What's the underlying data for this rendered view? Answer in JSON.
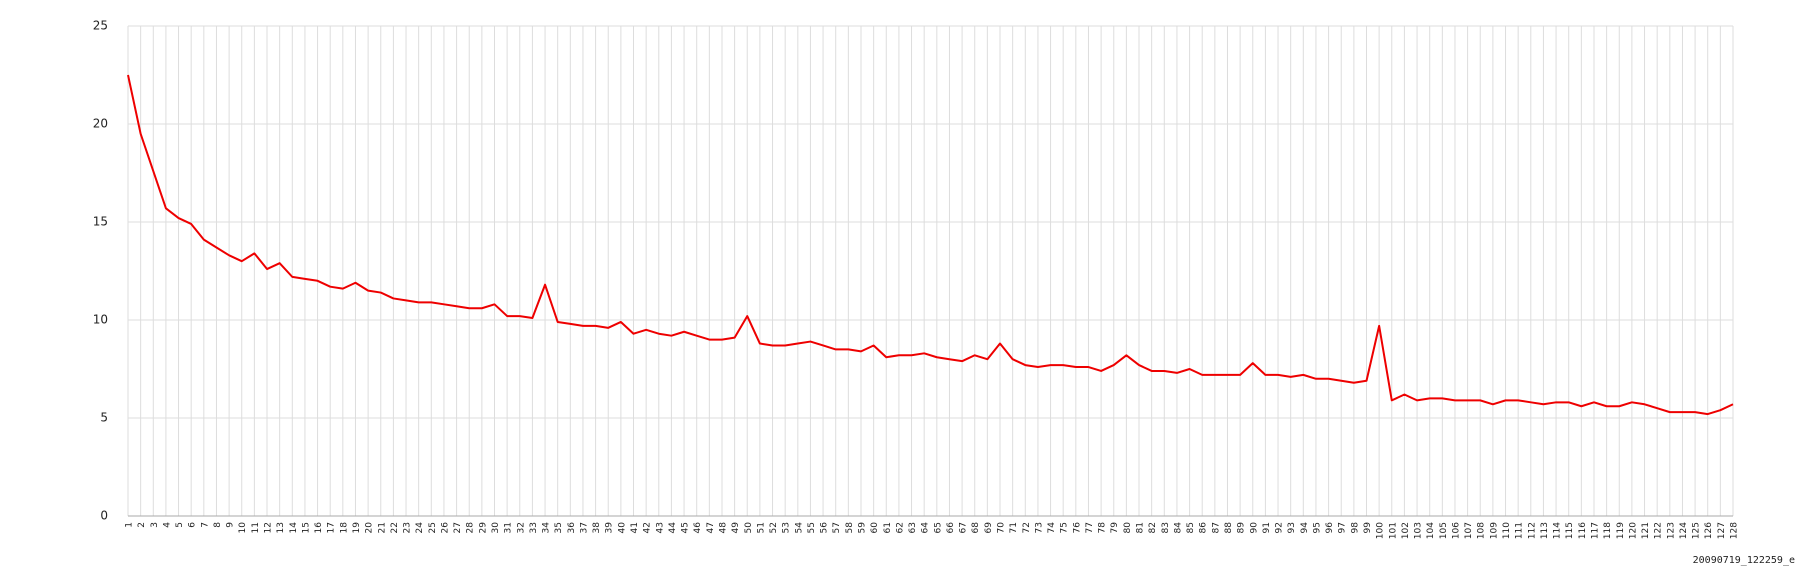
{
  "chart_data": {
    "type": "line",
    "categories": [
      "1",
      "2",
      "3",
      "4",
      "5",
      "6",
      "7",
      "8",
      "9",
      "10",
      "11",
      "12",
      "13",
      "14",
      "15",
      "16",
      "17",
      "18",
      "19",
      "20",
      "21",
      "22",
      "23",
      "24",
      "25",
      "26",
      "27",
      "28",
      "29",
      "30",
      "31",
      "32",
      "33",
      "34",
      "35",
      "36",
      "37",
      "38",
      "39",
      "40",
      "41",
      "42",
      "43",
      "44",
      "45",
      "46",
      "47",
      "48",
      "49",
      "50",
      "51",
      "52",
      "53",
      "54",
      "55",
      "56",
      "57",
      "58",
      "59",
      "60",
      "61",
      "62",
      "63",
      "64",
      "65",
      "66",
      "67",
      "68",
      "69",
      "70",
      "71",
      "72",
      "73",
      "74",
      "75",
      "76",
      "77",
      "78",
      "79",
      "80",
      "81",
      "82",
      "83",
      "84",
      "85",
      "86",
      "87",
      "88",
      "89",
      "90",
      "91",
      "92",
      "93",
      "94",
      "95",
      "96",
      "97",
      "98",
      "99",
      "100",
      "101",
      "102",
      "103",
      "104",
      "105",
      "106",
      "107",
      "108",
      "109",
      "110",
      "111",
      "112",
      "113",
      "114",
      "115",
      "116",
      "117",
      "118",
      "119",
      "120",
      "121",
      "122",
      "123",
      "124",
      "125",
      "126",
      "127",
      "128"
    ],
    "series": [
      {
        "color": "#ee0000",
        "values": [
          22.5,
          19.5,
          17.6,
          15.7,
          15.2,
          14.9,
          14.1,
          13.7,
          13.3,
          13.0,
          13.4,
          12.6,
          12.9,
          12.2,
          12.1,
          12.0,
          11.7,
          11.6,
          11.9,
          11.5,
          11.4,
          11.1,
          11.0,
          10.9,
          10.9,
          10.8,
          10.7,
          10.6,
          10.6,
          10.8,
          10.2,
          10.2,
          10.1,
          11.8,
          9.9,
          9.8,
          9.7,
          9.7,
          9.6,
          9.9,
          9.3,
          9.5,
          9.3,
          9.2,
          9.4,
          9.2,
          9.0,
          9.0,
          9.1,
          10.2,
          8.8,
          8.7,
          8.7,
          8.8,
          8.9,
          8.7,
          8.5,
          8.5,
          8.4,
          8.7,
          8.1,
          8.2,
          8.2,
          8.3,
          8.1,
          8.0,
          7.9,
          8.2,
          8.0,
          8.8,
          8.0,
          7.7,
          7.6,
          7.7,
          7.7,
          7.6,
          7.6,
          7.4,
          7.7,
          8.2,
          7.7,
          7.4,
          7.4,
          7.3,
          7.5,
          7.2,
          7.2,
          7.2,
          7.2,
          7.8,
          7.2,
          7.2,
          7.1,
          7.2,
          7.0,
          7.0,
          6.9,
          6.8,
          6.9,
          9.7,
          5.9,
          6.2,
          5.9,
          6.0,
          6.0,
          5.9,
          5.9,
          5.9,
          5.7,
          5.9,
          5.9,
          5.8,
          5.7,
          5.8,
          5.8,
          5.6,
          5.8,
          5.6,
          5.6,
          5.8,
          5.7,
          5.5,
          5.3,
          5.3,
          5.3,
          5.2,
          5.4,
          5.7
        ]
      }
    ],
    "ylim": [
      0,
      25
    ],
    "yticks": [
      0,
      5,
      10,
      15,
      20,
      25
    ],
    "grid": true,
    "footer": "20090719_122259_e"
  }
}
